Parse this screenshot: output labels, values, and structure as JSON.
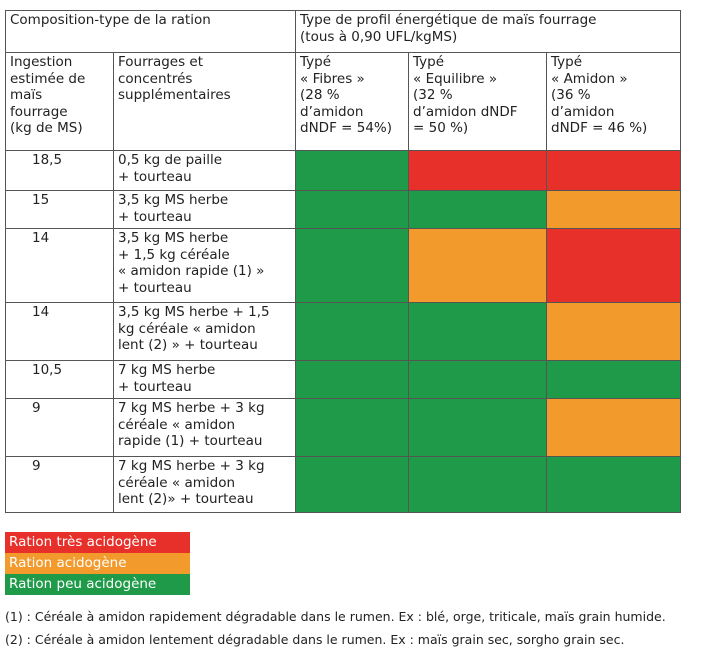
{
  "header": {
    "title": "Composition-type de la ration",
    "profile_title": [
      "Type de profil énergétique de maïs fourrage",
      "(tous à 0,90 UFL/kgMS)"
    ],
    "col_ingestion": [
      "Ingestion",
      "estimée de",
      "maïs",
      "fourrage",
      "(kg de MS)"
    ],
    "col_fourrages": [
      "Fourrages et",
      "concentrés",
      "supplémentaires"
    ],
    "profiles": [
      [
        "Typé",
        "« Fibres »",
        "(28 %",
        "d’amidon",
        "dNDF = 54%)"
      ],
      [
        "Typé",
        "« Equilibre »",
        "(32 %",
        "d’amidon dNDF",
        "= 50 %)"
      ],
      [
        "Typé",
        "« Amidon »",
        "(36 %",
        "d’amidon",
        "dNDF = 46 %)"
      ]
    ]
  },
  "table": {
    "rows": [
      {
        "ingestion": "18,5",
        "fourrages": [
          "0,5 kg de paille",
          "+ tourteau"
        ],
        "colors": [
          "#1e9a48",
          "#e8302b",
          "#e8302b"
        ]
      },
      {
        "ingestion": "15",
        "fourrages": [
          "3,5 kg MS herbe",
          "+ tourteau"
        ],
        "colors": [
          "#1e9a48",
          "#1e9a48",
          "#f39a2c"
        ]
      },
      {
        "ingestion": "14",
        "fourrages": [
          "3,5 kg MS herbe",
          "+ 1,5 kg céréale",
          "« amidon rapide (1) »",
          "+ tourteau"
        ],
        "colors": [
          "#1e9a48",
          "#f39a2c",
          "#e8302b"
        ]
      },
      {
        "ingestion": "14",
        "fourrages": [
          "3,5 kg MS herbe + 1,5",
          "kg céréale « amidon",
          "lent (2) » + tourteau"
        ],
        "colors": [
          "#1e9a48",
          "#1e9a48",
          "#f39a2c"
        ]
      },
      {
        "ingestion": "10,5",
        "fourrages": [
          "7 kg MS herbe",
          "+ tourteau"
        ],
        "colors": [
          "#1e9a48",
          "#1e9a48",
          "#1e9a48"
        ]
      },
      {
        "ingestion": "9",
        "fourrages": [
          "7 kg MS herbe + 3 kg",
          "céréale « amidon",
          "rapide (1) + tourteau"
        ],
        "colors": [
          "#1e9a48",
          "#1e9a48",
          "#f39a2c"
        ]
      },
      {
        "ingestion": "9",
        "fourrages": [
          "7 kg MS herbe + 3 kg",
          "céréale « amidon",
          "lent (2)» + tourteau"
        ],
        "colors": [
          "#1e9a48",
          "#1e9a48",
          "#1e9a48"
        ]
      }
    ]
  },
  "legend": [
    {
      "label": "Ration très acidogène",
      "color": "#e8302b"
    },
    {
      "label": "Ration acidogène",
      "color": "#f39a2c"
    },
    {
      "label": "Ration peu acidogène",
      "color": "#1e9a48"
    }
  ],
  "footnotes": [
    "(1) : Céréale à amidon rapidement dégradable dans le rumen. Ex : blé, orge, triticale, maïs grain humide.",
    "(2) : Céréale à amidon lentement dégradable dans le rumen. Ex : maïs grain sec, sorgho grain sec."
  ]
}
